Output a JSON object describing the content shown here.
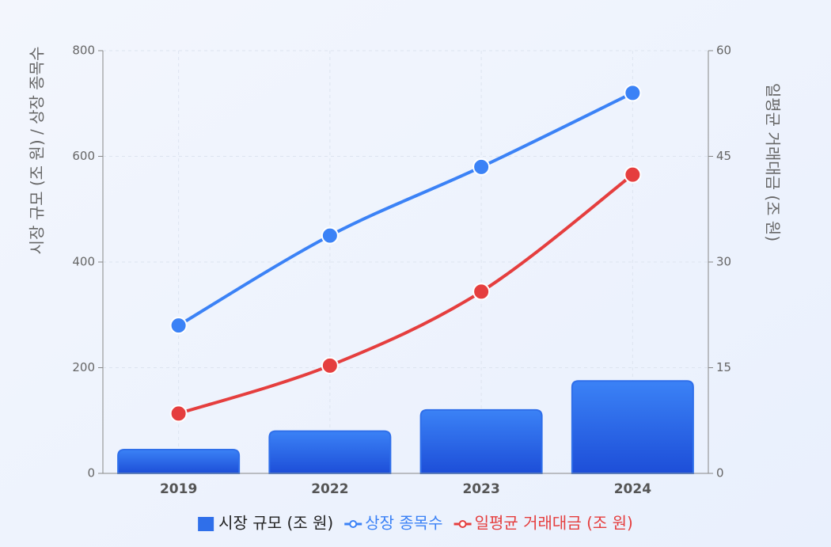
{
  "chart_data": {
    "type": "bar-line",
    "y_label": "시장 규모 (조 원) / 상장 종목수",
    "y2_label": "일평균 거래대금 (조 원)",
    "categories": [
      "2019",
      "2022",
      "2023",
      "2024"
    ],
    "series": [
      {
        "name": "시장 규모 (조 원)",
        "type": "bar",
        "color": "#2f6fea",
        "values": [
          45,
          80,
          120,
          175
        ]
      },
      {
        "name": "상장 종목수",
        "type": "line",
        "color": "#3b82f6",
        "values": [
          280,
          450,
          580,
          720
        ]
      },
      {
        "name": "일평균 거래대금 (조 원)",
        "type": "line",
        "color": "#e53e3e",
        "axis": "y2",
        "values": [
          8.5,
          15.3,
          25.8,
          42.4
        ]
      }
    ],
    "ylim": [
      0,
      800
    ],
    "yticks": [
      0,
      200,
      400,
      600,
      800
    ],
    "y2lim": [
      0,
      60
    ],
    "y2ticks": [
      0,
      15,
      30,
      45,
      60
    ],
    "grid": true,
    "legend": "bottom"
  }
}
